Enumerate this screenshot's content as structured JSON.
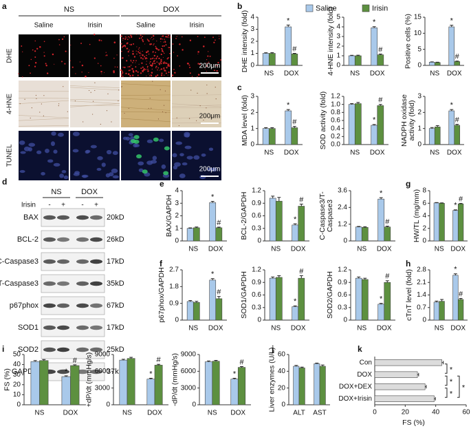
{
  "panel_labels": [
    "a",
    "b",
    "c",
    "d",
    "e",
    "f",
    "g",
    "h",
    "i",
    "j",
    "k"
  ],
  "panel_a": {
    "groups": [
      "NS",
      "DOX"
    ],
    "columns": [
      "Saline",
      "Irisin",
      "Saline",
      "Irisin"
    ],
    "rows": [
      "DHE",
      "4-HNE",
      "TUNEL"
    ],
    "scale_bars": [
      "200μm",
      "200μm",
      "200μm"
    ]
  },
  "panel_d": {
    "groups": [
      "NS",
      "DOX"
    ],
    "treatment": "Irisin",
    "signs": [
      "-",
      "+",
      "-",
      "+"
    ],
    "proteins": [
      "BAX",
      "BCL-2",
      "C-Caspase3",
      "T-Caspase3",
      "p67phox",
      "SOD1",
      "SOD2",
      "GAPDH"
    ],
    "sizes": [
      "20kD",
      "26kD",
      "17kD",
      "35kD",
      "67kD",
      "17kD",
      "25kD",
      "37kD"
    ]
  },
  "legend": [
    {
      "name": "Saline",
      "color": "#a9c9ea"
    },
    {
      "name": "Irisin",
      "color": "#5d9040"
    }
  ],
  "chart_data": [
    {
      "type": "bar",
      "ylabel": [
        "DHE intensity (fold)"
      ],
      "categories": [
        "NS",
        "DOX"
      ],
      "ylim": [
        0,
        4
      ],
      "yticks": [
        0,
        1,
        2,
        3,
        4
      ],
      "series": [
        {
          "values": [
            1.0,
            3.2
          ],
          "errors": [
            0.05,
            0.15
          ],
          "marks": [
            null,
            "*"
          ]
        },
        {
          "values": [
            1.0,
            0.95
          ],
          "errors": [
            0.06,
            0.05
          ],
          "marks": [
            null,
            "#"
          ]
        }
      ]
    },
    {
      "type": "bar",
      "ylabel": [
        "4-HNE intensity (fold)"
      ],
      "categories": [
        "NS",
        "DOX"
      ],
      "ylim": [
        0,
        5
      ],
      "yticks": [
        0,
        1,
        2,
        3,
        4,
        5
      ],
      "series": [
        {
          "values": [
            1.0,
            3.9
          ],
          "errors": [
            0.05,
            0.12
          ],
          "marks": [
            null,
            "*"
          ]
        },
        {
          "values": [
            1.0,
            1.1
          ],
          "errors": [
            0.06,
            0.08
          ],
          "marks": [
            null,
            "#"
          ]
        }
      ]
    },
    {
      "type": "bar",
      "ylabel": [
        "Positive cells (%)"
      ],
      "categories": [
        "NS",
        "DOX"
      ],
      "ylim": [
        0,
        15
      ],
      "yticks": [
        0,
        5,
        10,
        15
      ],
      "series": [
        {
          "values": [
            1.0,
            12
          ],
          "errors": [
            0.1,
            0.5
          ],
          "marks": [
            null,
            "*"
          ]
        },
        {
          "values": [
            0.9,
            1.2
          ],
          "errors": [
            0.1,
            0.15
          ],
          "marks": [
            null,
            "#"
          ]
        }
      ]
    },
    {
      "type": "bar",
      "ylabel": [
        "MDA level (fold)"
      ],
      "categories": [
        "NS",
        "DOX"
      ],
      "ylim": [
        0,
        3
      ],
      "yticks": [
        0,
        1,
        2,
        3
      ],
      "series": [
        {
          "values": [
            1.0,
            2.1
          ],
          "errors": [
            0.05,
            0.08
          ],
          "marks": [
            null,
            "*"
          ]
        },
        {
          "values": [
            1.0,
            1.05
          ],
          "errors": [
            0.05,
            0.08
          ],
          "marks": [
            null,
            "#"
          ]
        }
      ]
    },
    {
      "type": "bar",
      "ylabel": [
        "SOD activity (fold)"
      ],
      "categories": [
        "NS",
        "DOX"
      ],
      "ylim": [
        0,
        1.2
      ],
      "yticks": [
        {
          "value": 0,
          "label": "0.0"
        },
        0.2,
        0.4,
        0.6,
        0.8,
        {
          "value": 1,
          "label": "1.0"
        },
        1.2
      ],
      "series": [
        {
          "values": [
            1.0,
            0.48
          ],
          "errors": [
            0.02,
            0.02
          ],
          "marks": [
            null,
            "*"
          ]
        },
        {
          "values": [
            1.02,
            0.97
          ],
          "errors": [
            0.03,
            0.03
          ],
          "marks": [
            null,
            "#"
          ]
        }
      ]
    },
    {
      "type": "bar",
      "ylabel": [
        "NADPH oxidase",
        "activity (fold)"
      ],
      "categories": [
        "NS",
        "DOX"
      ],
      "ylim": [
        0,
        3
      ],
      "yticks": [
        0,
        1,
        2,
        3
      ],
      "series": [
        {
          "values": [
            1.0,
            2.1
          ],
          "errors": [
            0.06,
            0.08
          ],
          "marks": [
            null,
            "*"
          ]
        },
        {
          "values": [
            1.1,
            1.2
          ],
          "errors": [
            0.08,
            0.06
          ],
          "marks": [
            null,
            "#"
          ]
        }
      ]
    },
    {
      "type": "bar",
      "ylabel": [
        "BAX/GAPDH"
      ],
      "categories": [
        "NS",
        "DOX"
      ],
      "ylim": [
        0,
        4
      ],
      "yticks": [
        0,
        1,
        2,
        3,
        4
      ],
      "series": [
        {
          "values": [
            1.0,
            3.05
          ],
          "errors": [
            0.04,
            0.1
          ],
          "marks": [
            null,
            "*"
          ]
        },
        {
          "values": [
            1.05,
            1.05
          ],
          "errors": [
            0.06,
            0.05
          ],
          "marks": [
            null,
            "#"
          ]
        }
      ]
    },
    {
      "type": "bar",
      "ylabel": [
        "BCL-2/GAPDH"
      ],
      "categories": [
        "NS",
        "DOX"
      ],
      "ylim": [
        0,
        1.2
      ],
      "yticks": [
        0,
        0.3,
        0.6,
        0.9,
        1.2
      ],
      "series": [
        {
          "values": [
            1.02,
            0.38
          ],
          "errors": [
            0.05,
            0.03
          ],
          "marks": [
            null,
            "*"
          ]
        },
        {
          "values": [
            0.95,
            0.83
          ],
          "errors": [
            0.09,
            0.05
          ],
          "marks": [
            null,
            "#"
          ]
        }
      ]
    },
    {
      "type": "bar",
      "ylabel": [
        "C-Caspase3/T-",
        "Caspase3"
      ],
      "categories": [
        "NS",
        "DOX"
      ],
      "ylim": [
        0,
        3.6
      ],
      "yticks": [
        0,
        1.2,
        2.4,
        3.6
      ],
      "series": [
        {
          "values": [
            1.0,
            3.0
          ],
          "errors": [
            0.04,
            0.1
          ],
          "marks": [
            null,
            "*"
          ]
        },
        {
          "values": [
            0.97,
            1.0
          ],
          "errors": [
            0.05,
            0.06
          ],
          "marks": [
            null,
            "#"
          ]
        }
      ]
    },
    {
      "type": "bar",
      "ylabel": [
        "HW/TL (mg/mm)"
      ],
      "categories": [
        "NS",
        "DOX"
      ],
      "ylim": [
        0,
        8
      ],
      "yticks": [
        0,
        2,
        4,
        6,
        8
      ],
      "series": [
        {
          "values": [
            6.05,
            4.85
          ],
          "errors": [
            0.06,
            0.1
          ],
          "marks": [
            null,
            "*"
          ]
        },
        {
          "values": [
            6.0,
            5.9
          ],
          "errors": [
            0.06,
            0.08
          ],
          "marks": [
            null,
            "#"
          ]
        }
      ]
    },
    {
      "type": "bar",
      "ylabel": [
        "p67phox/GAPDH"
      ],
      "categories": [
        "NS",
        "DOX"
      ],
      "ylim": [
        0,
        2.7
      ],
      "yticks": [
        0,
        0.9,
        1.8,
        2.7
      ],
      "series": [
        {
          "values": [
            1.0,
            2.15
          ],
          "errors": [
            0.05,
            0.08
          ],
          "marks": [
            null,
            "*"
          ]
        },
        {
          "values": [
            0.95,
            1.15
          ],
          "errors": [
            0.06,
            0.12
          ],
          "marks": [
            null,
            "#"
          ]
        }
      ]
    },
    {
      "type": "bar",
      "ylabel": [
        "SOD1/GAPDH"
      ],
      "categories": [
        "NS",
        "DOX"
      ],
      "ylim": [
        0,
        1.2
      ],
      "yticks": [
        0,
        0.3,
        0.6,
        0.9,
        1.2
      ],
      "series": [
        {
          "values": [
            1.0,
            0.32
          ],
          "errors": [
            0.03,
            0.02
          ],
          "marks": [
            null,
            "*"
          ]
        },
        {
          "values": [
            1.02,
            1.0
          ],
          "errors": [
            0.04,
            0.06
          ],
          "marks": [
            null,
            "#"
          ]
        }
      ]
    },
    {
      "type": "bar",
      "ylabel": [
        "SOD2/GAPDH"
      ],
      "categories": [
        "NS",
        "DOX"
      ],
      "ylim": [
        0,
        1.2
      ],
      "yticks": [
        0,
        0.3,
        0.6,
        0.9,
        1.2
      ],
      "series": [
        {
          "values": [
            1.0,
            0.38
          ],
          "errors": [
            0.03,
            0.02
          ],
          "marks": [
            null,
            "*"
          ]
        },
        {
          "values": [
            0.97,
            0.9
          ],
          "errors": [
            0.03,
            0.04
          ],
          "marks": [
            null,
            "#"
          ]
        }
      ]
    },
    {
      "type": "bar",
      "ylabel": [
        "cTnT level (fold)"
      ],
      "categories": [
        "NS",
        "DOX"
      ],
      "ylim": [
        0,
        2.8
      ],
      "yticks": [
        0,
        0.7,
        1.4,
        2.1,
        2.8
      ],
      "series": [
        {
          "values": [
            1.0,
            2.5
          ],
          "errors": [
            0.06,
            0.08
          ],
          "marks": [
            null,
            "*"
          ]
        },
        {
          "values": [
            1.05,
            1.15
          ],
          "errors": [
            0.1,
            0.06
          ],
          "marks": [
            null,
            "#"
          ]
        }
      ]
    },
    {
      "type": "bar",
      "ylabel": [
        "FS (%)"
      ],
      "categories": [
        "NS",
        "DOX"
      ],
      "ylim": [
        0,
        50
      ],
      "yticks": [
        0,
        10,
        20,
        30,
        40,
        50
      ],
      "series": [
        {
          "values": [
            43,
            28
          ],
          "errors": [
            1,
            0.8
          ],
          "marks": [
            null,
            "*"
          ]
        },
        {
          "values": [
            44,
            39
          ],
          "errors": [
            1,
            0.8
          ],
          "marks": [
            null,
            "#"
          ]
        }
      ]
    },
    {
      "type": "bar",
      "ylabel": [
        "+dP/dt (mmHg/s)"
      ],
      "categories": [
        "NS",
        "DOX"
      ],
      "ylim": [
        0,
        9000
      ],
      "yticks": [
        0,
        3000,
        6000,
        9000
      ],
      "series": [
        {
          "values": [
            8000,
            4600
          ],
          "errors": [
            150,
            150
          ],
          "marks": [
            null,
            "*"
          ]
        },
        {
          "values": [
            8300,
            7100
          ],
          "errors": [
            200,
            150
          ],
          "marks": [
            null,
            "#"
          ]
        }
      ]
    },
    {
      "type": "bar",
      "ylabel": [
        "-dP/dt (mmHg/s)"
      ],
      "categories": [
        "NS",
        "DOX"
      ],
      "ylim": [
        0,
        9000
      ],
      "yticks": [
        0,
        3000,
        6000,
        9000
      ],
      "series": [
        {
          "values": [
            7700,
            4600
          ],
          "errors": [
            150,
            150
          ],
          "marks": [
            null,
            "*"
          ]
        },
        {
          "values": [
            7800,
            6700
          ],
          "errors": [
            150,
            150
          ],
          "marks": [
            null,
            "#"
          ]
        }
      ]
    },
    {
      "type": "bar",
      "ylabel": [
        "Liver enzymes (U/L)"
      ],
      "categories": [
        "ALT",
        "AST"
      ],
      "ylim": [
        0,
        60
      ],
      "yticks": [
        0,
        20,
        40,
        60
      ],
      "series": [
        {
          "values": [
            46,
            49
          ],
          "errors": [
            1,
            0.8
          ]
        },
        {
          "values": [
            44,
            46
          ],
          "errors": [
            1,
            1.5
          ]
        }
      ]
    },
    {
      "type": "hbar",
      "xlabel": "FS (%)",
      "categories": [
        "Con",
        "DOX",
        "DOX+DEX",
        "DOX+Irisin"
      ],
      "color": "#dcdcdc",
      "values": [
        44,
        28,
        33,
        39
      ],
      "errors": [
        1,
        0.8,
        0.8,
        0.8
      ],
      "xlim": [
        0,
        60
      ],
      "xticks": [
        0,
        20,
        40,
        60
      ],
      "significance_labels": [
        "*",
        "*",
        "*",
        "*"
      ]
    }
  ]
}
